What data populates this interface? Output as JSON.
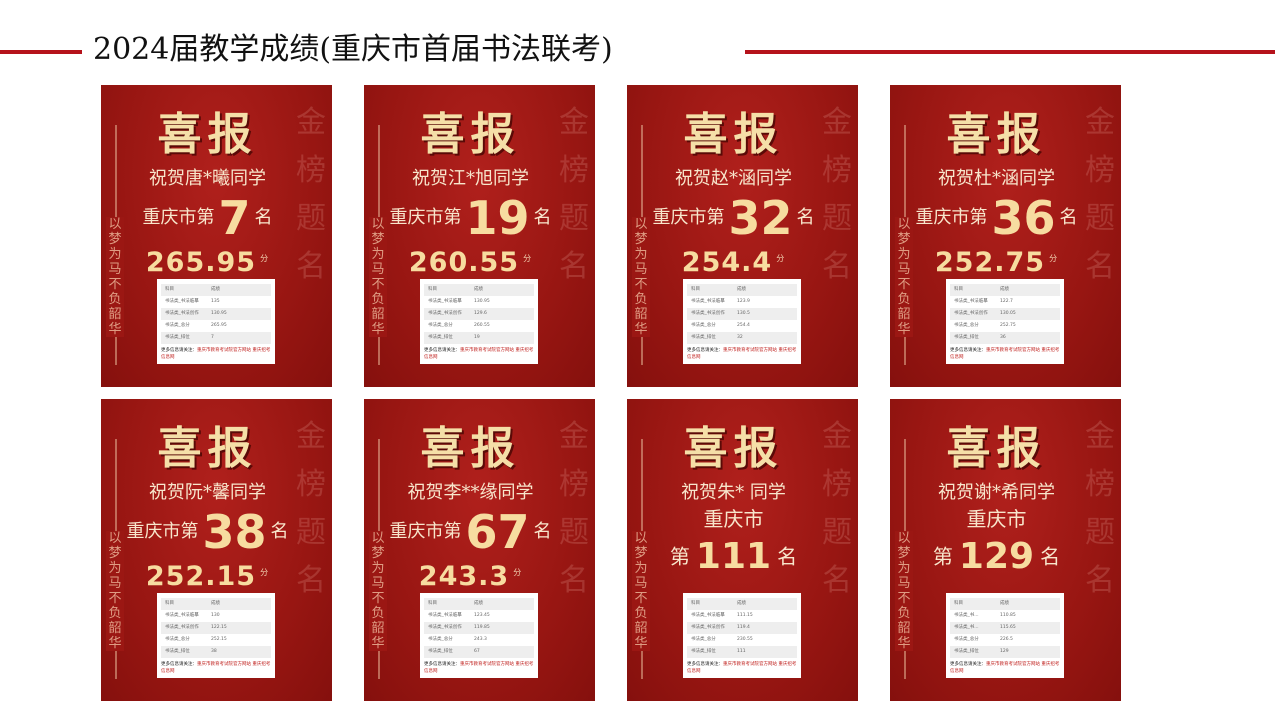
{
  "slide": {
    "title": "2024届教学成绩(重庆市首届书法联考)"
  },
  "poster": {
    "headline": "喜报",
    "motto": "以梦为马不负韶华",
    "watermark": "金榜题名",
    "prefix": "重庆市第",
    "suffix": "名",
    "city": "重庆市",
    "di": "第",
    "unit": "分",
    "table_header": [
      "科目",
      "成绩"
    ],
    "footer_label": "更多信息请关注：",
    "footer_links": "重庆市教育考试院官方网站 重庆招考信息网"
  },
  "cards": [
    {
      "congrats": "祝贺唐*曦同学",
      "rank": "7",
      "score": "265.95",
      "rows": [
        [
          "书法类_书法临摹",
          "135"
        ],
        [
          "书法类_书法创作",
          "130.95"
        ],
        [
          "书法类_总分",
          "265.95"
        ],
        [
          "书法类_排位",
          "7"
        ]
      ]
    },
    {
      "congrats": "祝贺江*旭同学",
      "rank": "19",
      "score": "260.55",
      "rows": [
        [
          "书法类_书法临摹",
          "130.95"
        ],
        [
          "书法类_书法创作",
          "129.6"
        ],
        [
          "书法类_总分",
          "260.55"
        ],
        [
          "书法类_排位",
          "19"
        ]
      ]
    },
    {
      "congrats": "祝贺赵*涵同学",
      "rank": "32",
      "score": "254.4",
      "rows": [
        [
          "书法类_书法临摹",
          "123.9"
        ],
        [
          "书法类_书法创作",
          "130.5"
        ],
        [
          "书法类_总分",
          "254.4"
        ],
        [
          "书法类_排位",
          "32"
        ]
      ]
    },
    {
      "congrats": "祝贺杜*涵同学",
      "rank": "36",
      "score": "252.75",
      "rows": [
        [
          "书法类_书法临摹",
          "122.7"
        ],
        [
          "书法类_书法创作",
          "130.05"
        ],
        [
          "书法类_总分",
          "252.75"
        ],
        [
          "书法类_排位",
          "36"
        ]
      ]
    },
    {
      "congrats": "祝贺阮*馨同学",
      "rank": "38",
      "score": "252.15",
      "rows": [
        [
          "书法类_书法临摹",
          "130"
        ],
        [
          "书法类_书法创作",
          "122.15"
        ],
        [
          "书法类_总分",
          "252.15"
        ],
        [
          "书法类_排位",
          "38"
        ]
      ]
    },
    {
      "congrats": "祝贺李**缘同学",
      "rank": "67",
      "score": "243.3",
      "rows": [
        [
          "书法类_书法临摹",
          "123.45"
        ],
        [
          "书法类_书法创作",
          "119.85"
        ],
        [
          "书法类_总分",
          "243.3"
        ],
        [
          "书法类_排位",
          "67"
        ]
      ]
    },
    {
      "congrats": "祝贺朱*  同学",
      "rank": "111",
      "score": "",
      "rows": [
        [
          "书法类_书法临摹",
          "111.15"
        ],
        [
          "书法类_书法创作",
          "119.4"
        ],
        [
          "书法类_总分",
          "230.55"
        ],
        [
          "书法类_排位",
          "111"
        ]
      ]
    },
    {
      "congrats": "祝贺谢*希同学",
      "rank": "129",
      "score": "",
      "rows": [
        [
          "书法类_书...",
          "110.85"
        ],
        [
          "书法类_书...",
          "115.65"
        ],
        [
          "书法类_总分",
          "226.5"
        ],
        [
          "书法类_排位",
          "129"
        ]
      ]
    }
  ]
}
